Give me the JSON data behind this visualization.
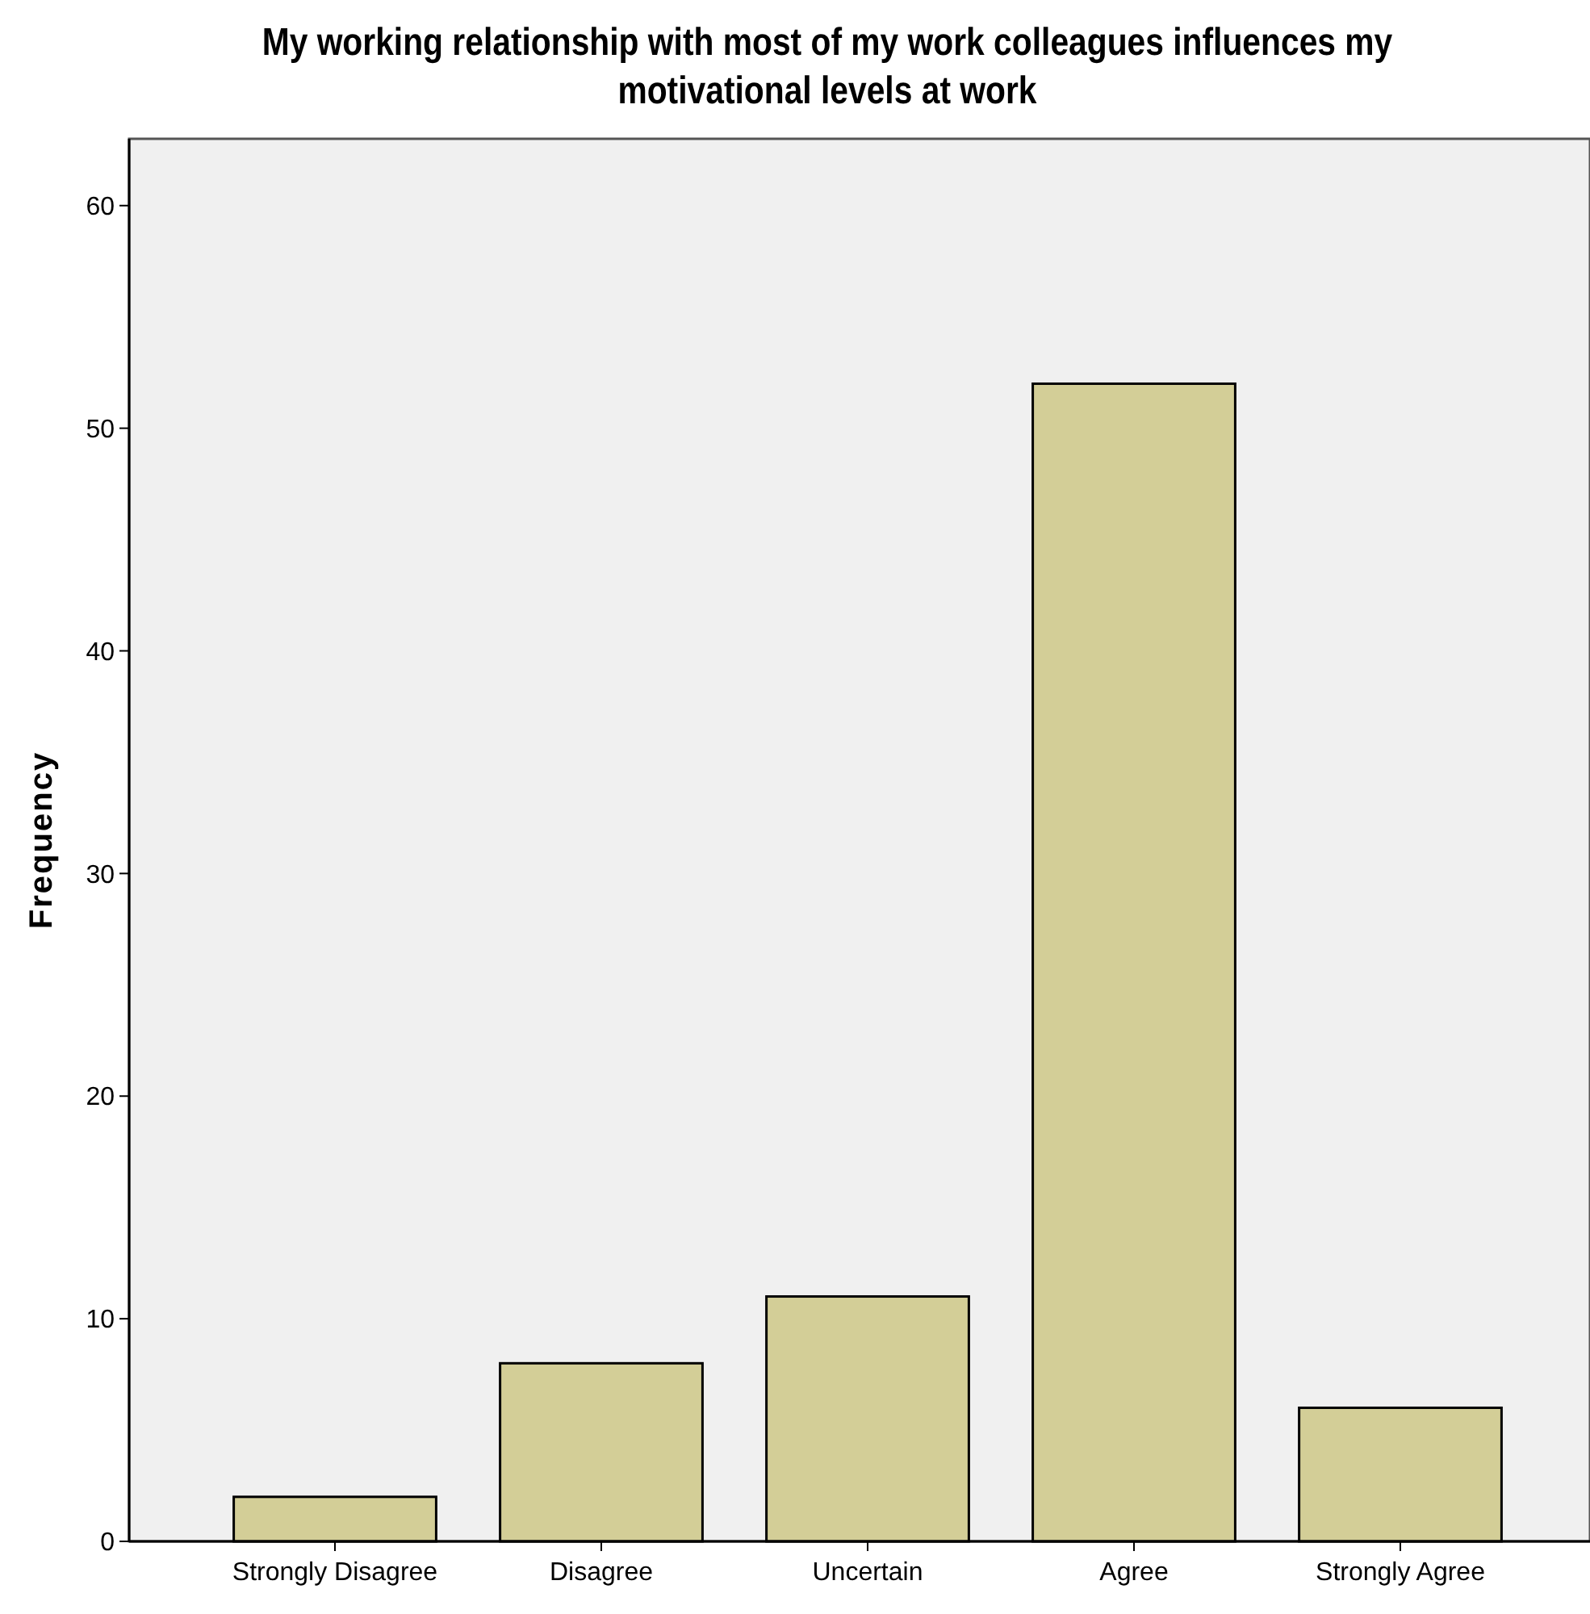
{
  "chart_data": {
    "type": "bar",
    "title": "My working relationship with most of my work colleagues influences my motivational levels at work",
    "ylabel": "Frequency",
    "categories": [
      "Strongly Disagree",
      "Disagree",
      "Uncertain",
      "Agree",
      "Strongly Agree"
    ],
    "values": [
      2,
      8,
      11,
      52,
      6
    ],
    "color": "#d3ce97",
    "ylim": [
      0,
      63
    ],
    "yticks": [
      0,
      10,
      20,
      30,
      40,
      50,
      60
    ],
    "grid": false
  }
}
